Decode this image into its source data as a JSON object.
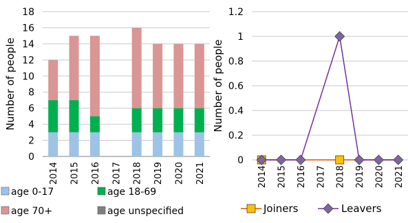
{
  "chart_data": [
    {
      "type": "bar",
      "stacked": true,
      "categories": [
        "2014",
        "2015",
        "2016",
        "2017",
        "2018",
        "2019",
        "2020",
        "2021"
      ],
      "series": [
        {
          "name": "age 0-17",
          "color": "#9dc3e6",
          "values": [
            3,
            3,
            3,
            0,
            3,
            3,
            3,
            3
          ]
        },
        {
          "name": "age 18-69",
          "color": "#00b050",
          "values": [
            4,
            4,
            2,
            0,
            3,
            3,
            3,
            3
          ]
        },
        {
          "name": "age 70+",
          "color": "#d99694",
          "values": [
            5,
            8,
            10,
            0,
            10,
            8,
            8,
            8
          ]
        },
        {
          "name": "age unspecified",
          "color": "#7f7f7f",
          "values": [
            0,
            0,
            0,
            0,
            0,
            0,
            0,
            0
          ]
        }
      ],
      "ylabel": "Number of people",
      "ylim": [
        0,
        18
      ],
      "yticks": [
        "0",
        "2",
        "4",
        "6",
        "8",
        "10",
        "12",
        "14",
        "16",
        "18"
      ],
      "grid": true,
      "legend_position": "bottom"
    },
    {
      "type": "line",
      "categories": [
        "2014",
        "2015",
        "2016",
        "2017",
        "2018",
        "2019",
        "2020",
        "2021"
      ],
      "series": [
        {
          "name": "Joiners",
          "color": "#ed7d31",
          "marker_color": "#ffc000",
          "marker": "square",
          "values": [
            0,
            null,
            null,
            null,
            0,
            null,
            null,
            null
          ]
        },
        {
          "name": "Leavers",
          "color": "#7030a0",
          "marker_color": "#8064a2",
          "marker": "diamond",
          "values": [
            0,
            0,
            0,
            null,
            1,
            0,
            0,
            0
          ]
        }
      ],
      "ylabel": "Number of people",
      "ylim": [
        0,
        1.2
      ],
      "yticks": [
        "0",
        "0.2",
        "0.4",
        "0.6",
        "0.8",
        "1",
        "1.2"
      ],
      "grid": true,
      "legend_position": "bottom"
    }
  ]
}
